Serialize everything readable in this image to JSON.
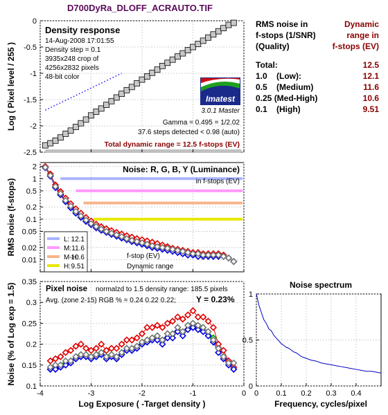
{
  "title": "D700DyRa_DLOFF_ACRAUTO.TIF",
  "density_panel": {
    "title": "Density response",
    "info": [
      "14-Aug-2008 17:01:55",
      "Density step = 0.1",
      "3935x248 crop of",
      "4256x2832 pixels",
      "48-bit color"
    ],
    "logo_text": "Imatest",
    "logo_version": "3.0.1  Master",
    "gamma": "Gamma = 0.495 = 1/2.02",
    "steps": "37.6 steps detected < 0.98 (auto)",
    "total": "Total dynamic range = 12.5 f-stops (EV)",
    "ylabel": "Log ( Pixel level / 255 )"
  },
  "noise_panel": {
    "title": "Noise: R, G, B, Y (Luminance)",
    "subtitle": "in f-stops (EV)",
    "ylabel": "RMS noise (f-stops)",
    "legend_footer_1": "f-stop (EV)",
    "legend_footer_2": "Dynamic range",
    "legend": [
      {
        "code": "L:",
        "value": "12.1",
        "color": "#a9b4ff"
      },
      {
        "code": "M:",
        "value": "11.6",
        "color": "#ff99ff"
      },
      {
        "code": "M-H:",
        "value": "10.6",
        "color": "#f7b48a"
      },
      {
        "code": "H:",
        "value": "9.51",
        "color": "#e8e800"
      }
    ]
  },
  "pixel_noise_panel": {
    "title": "Pixel noise",
    "norm_text": "normalzd to 1.5 density range: 185.5 pixels",
    "avg_text": "Avg. (zone 2-15) RGB % = 0.24  0.22  0.22;",
    "y_text": "Y = 0.23%",
    "xlabel": "Log Exposure ( -Target density )",
    "ylabel": "Noise (% of Log exp = 1.5)"
  },
  "spectrum_panel": {
    "title": "Noise spectrum",
    "xlabel": "Frequency, cycles/pixel"
  },
  "rms_table": {
    "head_left": [
      "RMS noise in",
      "f-stops (1/SNR)",
      "(Quality)"
    ],
    "head_right": [
      "Dynamic",
      "range in",
      "f-stops (EV)"
    ],
    "rows": [
      {
        "label": "Total:",
        "value": "12.5"
      },
      {
        "label": "1.0    (Low):",
        "value": "12.1"
      },
      {
        "label": "0.5    (Medium)",
        "value": "11.6"
      },
      {
        "label": "0.25 (Med-High)",
        "value": "10.6"
      },
      {
        "label": "0.1    (High)",
        "value": "9.51"
      }
    ]
  },
  "chart_data": [
    {
      "type": "line",
      "name": "density_response",
      "xlim": [
        -4,
        0
      ],
      "ylim": [
        -2.5,
        0
      ],
      "xticks": [
        -4,
        -3,
        -2,
        -1,
        0
      ],
      "xtick_labels": [],
      "yticks": [
        -2.5,
        -2,
        -1.5,
        -1,
        -0.5,
        0
      ],
      "ytick_labels": [
        "-2.5",
        "-2",
        "-1.5",
        "-1",
        "-0.5",
        "0"
      ],
      "series": [
        {
          "kind": "squares",
          "color": "#c8c8c8",
          "x": [
            -3.9,
            -3.8,
            -3.7,
            -3.6,
            -3.5,
            -3.4,
            -3.3,
            -3.2,
            -3.1,
            -3.0,
            -2.9,
            -2.8,
            -2.7,
            -2.6,
            -2.5,
            -2.4,
            -2.3,
            -2.2,
            -2.1,
            -2.0,
            -1.9,
            -1.8,
            -1.7,
            -1.6,
            -1.5,
            -1.4,
            -1.3,
            -1.2,
            -1.1,
            -1.0,
            -0.9,
            -0.8,
            -0.7,
            -0.6,
            -0.5,
            -0.4,
            -0.3,
            -0.2
          ],
          "y": [
            -2.37,
            -2.33,
            -2.28,
            -2.22,
            -2.15,
            -2.09,
            -2.02,
            -1.95,
            -1.88,
            -1.8,
            -1.73,
            -1.67,
            -1.6,
            -1.53,
            -1.46,
            -1.39,
            -1.32,
            -1.26,
            -1.19,
            -1.12,
            -1.06,
            -0.99,
            -0.93,
            -0.86,
            -0.8,
            -0.74,
            -0.68,
            -0.62,
            -0.56,
            -0.5,
            -0.44,
            -0.38,
            -0.32,
            -0.26,
            -0.2,
            -0.14,
            -0.08,
            -0.04
          ]
        },
        {
          "kind": "dotted",
          "color": "#1010ff",
          "x": [
            -3.9,
            -2.4
          ],
          "y": [
            -1.7,
            -1.0
          ]
        }
      ],
      "gray_band": {
        "y": -2.48
      }
    },
    {
      "type": "line",
      "name": "rms_noise",
      "xlim": [
        -4,
        0
      ],
      "yscale": "log",
      "ylim": [
        0.005,
        2.5
      ],
      "xticks": [
        -4,
        -3,
        -2,
        -1,
        0
      ],
      "xtick_labels": [],
      "yticks": [
        2,
        1,
        0.5,
        0.2,
        0.1,
        0.05,
        0.02,
        0.01
      ],
      "ytick_labels": [
        "2",
        "1",
        "0.5",
        "0.2",
        "0.1",
        "0.05",
        "0.02",
        "0.01"
      ],
      "hlines": [
        {
          "y": 1.0,
          "x_start": -3.6,
          "color": "#a9b4ff"
        },
        {
          "y": 0.5,
          "x_start": -3.3,
          "color": "#ff99ff"
        },
        {
          "y": 0.25,
          "x_start": -3.15,
          "color": "#f7b48a"
        },
        {
          "y": 0.1,
          "x_start": -2.95,
          "color": "#e8e800"
        }
      ],
      "x": [
        -3.9,
        -3.8,
        -3.7,
        -3.6,
        -3.5,
        -3.4,
        -3.3,
        -3.2,
        -3.1,
        -3.0,
        -2.9,
        -2.8,
        -2.7,
        -2.6,
        -2.5,
        -2.4,
        -2.3,
        -2.2,
        -2.1,
        -2.0,
        -1.9,
        -1.8,
        -1.7,
        -1.6,
        -1.5,
        -1.4,
        -1.3,
        -1.2,
        -1.1,
        -1.0,
        -0.9,
        -0.8,
        -0.7,
        -0.6,
        -0.5,
        -0.4,
        -0.3,
        -0.2
      ],
      "series": [
        {
          "name": "R",
          "color": "#e00000",
          "y": [
            2.0,
            1.3,
            0.7,
            0.48,
            0.33,
            0.24,
            0.18,
            0.14,
            0.11,
            0.09,
            0.075,
            0.065,
            0.058,
            0.052,
            0.047,
            0.043,
            0.039,
            0.036,
            0.033,
            0.031,
            0.029,
            0.027,
            0.025,
            0.023,
            0.021,
            0.019,
            0.018,
            0.017,
            0.016,
            0.015,
            0.015,
            0.014,
            0.014,
            0.014,
            0.014,
            0.013,
            0.011,
            0.009
          ]
        },
        {
          "name": "G",
          "color": "#00a000",
          "y": [
            1.9,
            1.2,
            0.62,
            0.42,
            0.28,
            0.2,
            0.15,
            0.115,
            0.09,
            0.075,
            0.063,
            0.055,
            0.048,
            0.043,
            0.039,
            0.035,
            0.032,
            0.029,
            0.027,
            0.025,
            0.023,
            0.021,
            0.02,
            0.019,
            0.018,
            0.017,
            0.016,
            0.015,
            0.014,
            0.014,
            0.013,
            0.013,
            0.013,
            0.013,
            0.013,
            0.012,
            0.011,
            0.009
          ]
        },
        {
          "name": "B",
          "color": "#0000e0",
          "y": [
            1.85,
            1.15,
            0.6,
            0.4,
            0.27,
            0.19,
            0.14,
            0.11,
            0.088,
            0.073,
            0.061,
            0.053,
            0.047,
            0.042,
            0.038,
            0.034,
            0.031,
            0.028,
            0.026,
            0.024,
            0.022,
            0.02,
            0.019,
            0.018,
            0.017,
            0.016,
            0.015,
            0.014,
            0.013,
            0.013,
            0.012,
            0.012,
            0.012,
            0.012,
            0.012,
            0.012,
            0.011,
            0.009
          ]
        },
        {
          "name": "Y",
          "color": "#7a7a7a",
          "y": [
            1.9,
            1.2,
            0.64,
            0.43,
            0.29,
            0.21,
            0.155,
            0.12,
            0.095,
            0.078,
            0.066,
            0.057,
            0.05,
            0.045,
            0.041,
            0.037,
            0.033,
            0.03,
            0.028,
            0.026,
            0.024,
            0.022,
            0.021,
            0.02,
            0.019,
            0.018,
            0.017,
            0.016,
            0.015,
            0.014,
            0.014,
            0.013,
            0.013,
            0.013,
            0.013,
            0.012,
            0.011,
            0.009
          ]
        }
      ]
    },
    {
      "type": "line",
      "name": "pixel_noise",
      "xlim": [
        -4,
        0
      ],
      "ylim": [
        0.1,
        0.35
      ],
      "xticks": [
        -4,
        -3,
        -2,
        -1,
        0
      ],
      "xtick_labels": [
        "-4",
        "-3",
        "-2",
        "-1",
        "0"
      ],
      "yticks": [
        0.1,
        0.15,
        0.2,
        0.25,
        0.3,
        0.35
      ],
      "ytick_labels": [
        "0.1",
        "0.15",
        "0.2",
        "0.25",
        "0.3",
        "0.35"
      ],
      "x": [
        -3.8,
        -3.7,
        -3.6,
        -3.5,
        -3.4,
        -3.3,
        -3.2,
        -3.1,
        -3.0,
        -2.9,
        -2.8,
        -2.7,
        -2.6,
        -2.5,
        -2.4,
        -2.3,
        -2.2,
        -2.1,
        -2.0,
        -1.9,
        -1.8,
        -1.7,
        -1.6,
        -1.5,
        -1.4,
        -1.3,
        -1.2,
        -1.1,
        -1.0,
        -0.9,
        -0.8,
        -0.7,
        -0.6,
        -0.5,
        -0.4,
        -0.3,
        -0.2
      ],
      "series": [
        {
          "name": "R",
          "color": "#e00000",
          "y": [
            0.16,
            0.165,
            0.17,
            0.18,
            0.185,
            0.195,
            0.2,
            0.19,
            0.185,
            0.19,
            0.2,
            0.185,
            0.19,
            0.19,
            0.2,
            0.21,
            0.21,
            0.215,
            0.225,
            0.24,
            0.24,
            0.245,
            0.24,
            0.25,
            0.255,
            0.265,
            0.26,
            0.27,
            0.28,
            0.265,
            0.265,
            0.255,
            0.24,
            0.2,
            0.185,
            0.16,
            0.145
          ]
        },
        {
          "name": "G",
          "color": "#00a000",
          "y": [
            0.14,
            0.145,
            0.15,
            0.155,
            0.16,
            0.17,
            0.175,
            0.175,
            0.17,
            0.175,
            0.18,
            0.17,
            0.175,
            0.17,
            0.18,
            0.19,
            0.19,
            0.195,
            0.205,
            0.21,
            0.215,
            0.22,
            0.21,
            0.225,
            0.225,
            0.24,
            0.23,
            0.245,
            0.25,
            0.245,
            0.24,
            0.23,
            0.215,
            0.19,
            0.17,
            0.155,
            0.14
          ]
        },
        {
          "name": "B",
          "color": "#0000e0",
          "y": [
            0.14,
            0.14,
            0.145,
            0.15,
            0.155,
            0.165,
            0.17,
            0.17,
            0.165,
            0.17,
            0.175,
            0.165,
            0.17,
            0.165,
            0.175,
            0.185,
            0.185,
            0.19,
            0.2,
            0.205,
            0.21,
            0.21,
            0.2,
            0.215,
            0.215,
            0.23,
            0.22,
            0.235,
            0.24,
            0.235,
            0.23,
            0.22,
            0.205,
            0.18,
            0.165,
            0.15,
            0.14
          ]
        },
        {
          "name": "Y",
          "color": "#7a7a7a",
          "y": [
            0.145,
            0.15,
            0.15,
            0.16,
            0.16,
            0.17,
            0.175,
            0.175,
            0.17,
            0.175,
            0.18,
            0.17,
            0.175,
            0.17,
            0.18,
            0.19,
            0.19,
            0.195,
            0.205,
            0.21,
            0.215,
            0.22,
            0.21,
            0.225,
            0.225,
            0.24,
            0.23,
            0.245,
            0.25,
            0.245,
            0.24,
            0.23,
            0.21,
            0.19,
            0.17,
            0.155,
            0.155
          ]
        }
      ]
    },
    {
      "type": "line",
      "name": "noise_spectrum",
      "xlim": [
        0,
        0.5
      ],
      "ylim": [
        0,
        1
      ],
      "xticks": [
        0,
        0.1,
        0.2,
        0.3,
        0.4
      ],
      "xtick_labels": [
        "0",
        "0.1",
        "0.2",
        "0.3",
        "0.4"
      ],
      "yticks": [
        0,
        0.5,
        1
      ],
      "ytick_labels": [
        "0",
        "0.5",
        "1"
      ],
      "series": [
        {
          "name": "spectrum",
          "color": "#0000c0",
          "x": [
            0,
            0.01,
            0.02,
            0.03,
            0.04,
            0.05,
            0.06,
            0.07,
            0.08,
            0.09,
            0.1,
            0.11,
            0.12,
            0.13,
            0.14,
            0.15,
            0.16,
            0.17,
            0.18,
            0.19,
            0.2,
            0.22,
            0.24,
            0.26,
            0.28,
            0.3,
            0.32,
            0.34,
            0.36,
            0.38,
            0.4,
            0.42,
            0.44,
            0.46,
            0.48,
            0.5
          ],
          "y": [
            1.0,
            0.88,
            0.8,
            0.72,
            0.68,
            0.62,
            0.6,
            0.55,
            0.52,
            0.49,
            0.46,
            0.44,
            0.42,
            0.41,
            0.39,
            0.37,
            0.36,
            0.34,
            0.32,
            0.31,
            0.3,
            0.28,
            0.27,
            0.25,
            0.24,
            0.23,
            0.22,
            0.21,
            0.2,
            0.19,
            0.18,
            0.17,
            0.16,
            0.16,
            0.15,
            0.14
          ]
        }
      ]
    }
  ]
}
